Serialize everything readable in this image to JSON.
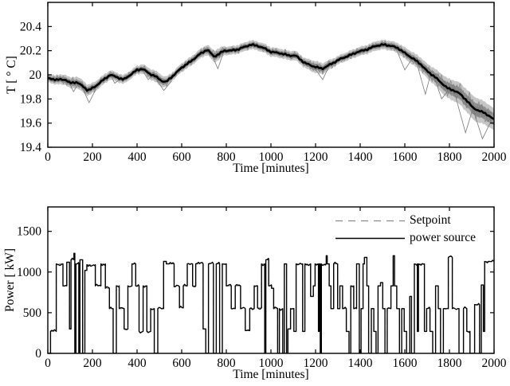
{
  "figure": {
    "background": "#ffffff",
    "axis_color": "#000000",
    "ensemble_color": "#7a7a7a",
    "band_outer_color": "#b3b3b3",
    "band_inner_color": "#8c8c8c"
  },
  "legend": {
    "items": [
      {
        "label": "Setpoint",
        "style": "dashed",
        "color": "#8a8a8a"
      },
      {
        "label": "power source",
        "style": "solid",
        "color": "#000000"
      }
    ]
  },
  "chart_data": [
    {
      "type": "line",
      "panel": "temperature",
      "xlabel": "Time [minutes]",
      "ylabel": "T [ ° C]",
      "xlim": [
        0,
        2000
      ],
      "ylim": [
        19.4,
        20.6
      ],
      "xticks": [
        0,
        200,
        400,
        600,
        800,
        1000,
        1200,
        1400,
        1600,
        1800,
        2000
      ],
      "yticks": [
        19.4,
        19.6,
        19.8,
        20,
        20.2,
        20.4
      ],
      "ytick_labels": [
        "19.4",
        "19.6",
        "19.8",
        "20",
        "20.2",
        "20.4"
      ],
      "grid": false,
      "series": [
        {
          "name": "ensemble-mean",
          "color": "#000000",
          "width": 2.6,
          "points": [
            [
              0,
              19.97
            ],
            [
              40,
              19.96
            ],
            [
              80,
              19.96
            ],
            [
              100,
              19.93
            ],
            [
              130,
              19.94
            ],
            [
              160,
              19.9
            ],
            [
              180,
              19.87
            ],
            [
              210,
              19.9
            ],
            [
              250,
              19.96
            ],
            [
              280,
              20.0
            ],
            [
              310,
              19.98
            ],
            [
              340,
              19.96
            ],
            [
              370,
              20.0
            ],
            [
              400,
              20.04
            ],
            [
              425,
              20.05
            ],
            [
              455,
              20.01
            ],
            [
              480,
              19.99
            ],
            [
              510,
              19.95
            ],
            [
              530,
              19.94
            ],
            [
              560,
              19.99
            ],
            [
              600,
              20.06
            ],
            [
              640,
              20.11
            ],
            [
              680,
              20.17
            ],
            [
              715,
              20.21
            ],
            [
              745,
              20.15
            ],
            [
              765,
              20.17
            ],
            [
              790,
              20.2
            ],
            [
              820,
              20.2
            ],
            [
              850,
              20.21
            ],
            [
              880,
              20.23
            ],
            [
              910,
              20.25
            ],
            [
              940,
              20.24
            ],
            [
              970,
              20.22
            ],
            [
              1000,
              20.19
            ],
            [
              1040,
              20.18
            ],
            [
              1080,
              20.16
            ],
            [
              1110,
              20.16
            ],
            [
              1150,
              20.1
            ],
            [
              1190,
              20.07
            ],
            [
              1230,
              20.05
            ],
            [
              1270,
              20.09
            ],
            [
              1310,
              20.13
            ],
            [
              1350,
              20.16
            ],
            [
              1390,
              20.19
            ],
            [
              1430,
              20.21
            ],
            [
              1470,
              20.24
            ],
            [
              1505,
              20.25
            ],
            [
              1540,
              20.24
            ],
            [
              1570,
              20.22
            ],
            [
              1600,
              20.18
            ],
            [
              1640,
              20.13
            ],
            [
              1670,
              20.09
            ],
            [
              1700,
              20.03
            ],
            [
              1730,
              19.99
            ],
            [
              1760,
              19.94
            ],
            [
              1790,
              19.89
            ],
            [
              1820,
              19.87
            ],
            [
              1850,
              19.84
            ],
            [
              1880,
              19.78
            ],
            [
              1905,
              19.73
            ],
            [
              1930,
              19.7
            ],
            [
              1955,
              19.69
            ],
            [
              1975,
              19.66
            ],
            [
              2000,
              19.63
            ]
          ]
        }
      ],
      "band_halfwidth": [
        [
          0,
          0.035
        ],
        [
          150,
          0.05
        ],
        [
          220,
          0.04
        ],
        [
          400,
          0.035
        ],
        [
          500,
          0.05
        ],
        [
          560,
          0.035
        ],
        [
          700,
          0.04
        ],
        [
          760,
          0.05
        ],
        [
          800,
          0.035
        ],
        [
          1150,
          0.04
        ],
        [
          1200,
          0.05
        ],
        [
          1300,
          0.035
        ],
        [
          1550,
          0.04
        ],
        [
          1620,
          0.05
        ],
        [
          1700,
          0.06
        ],
        [
          1780,
          0.08
        ],
        [
          1850,
          0.09
        ],
        [
          1920,
          0.1
        ],
        [
          2000,
          0.09
        ]
      ],
      "outlier_traces": [
        [
          [
            90,
            19.96
          ],
          [
            115,
            19.86
          ],
          [
            140,
            19.93
          ]
        ],
        [
          [
            150,
            19.91
          ],
          [
            185,
            19.77
          ],
          [
            215,
            19.88
          ]
        ],
        [
          [
            280,
            20.0
          ],
          [
            300,
            19.93
          ],
          [
            320,
            19.96
          ]
        ],
        [
          [
            420,
            20.05
          ],
          [
            450,
            19.96
          ],
          [
            470,
            20.0
          ]
        ],
        [
          [
            480,
            19.98
          ],
          [
            520,
            19.87
          ],
          [
            555,
            19.95
          ]
        ],
        [
          [
            730,
            20.19
          ],
          [
            762,
            20.05
          ],
          [
            788,
            20.19
          ]
        ],
        [
          [
            1190,
            20.07
          ],
          [
            1232,
            19.96
          ],
          [
            1262,
            20.08
          ]
        ],
        [
          [
            1560,
            20.22
          ],
          [
            1600,
            20.04
          ],
          [
            1628,
            20.12
          ]
        ],
        [
          [
            1650,
            20.12
          ],
          [
            1692,
            19.84
          ],
          [
            1715,
            20.0
          ]
        ],
        [
          [
            1730,
            19.99
          ],
          [
            1765,
            19.8
          ],
          [
            1798,
            19.88
          ]
        ],
        [
          [
            1820,
            19.87
          ],
          [
            1872,
            19.52
          ],
          [
            1905,
            19.72
          ]
        ],
        [
          [
            1905,
            19.72
          ],
          [
            1948,
            19.47
          ],
          [
            1988,
            19.62
          ]
        ]
      ]
    },
    {
      "type": "step",
      "panel": "power",
      "xlabel": "Time [minutes]",
      "ylabel": "Power [ kW]",
      "xlim": [
        0,
        2000
      ],
      "ylim": [
        0,
        1800
      ],
      "xticks": [
        0,
        200,
        400,
        600,
        800,
        1000,
        1200,
        1400,
        1600,
        1800,
        2000
      ],
      "yticks": [
        0,
        500,
        1000,
        1500
      ],
      "ytick_labels": [
        "0",
        "500",
        "1000",
        "1500"
      ],
      "grid": false,
      "steps": [
        [
          0,
          0
        ],
        [
          12,
          270
        ],
        [
          38,
          1100
        ],
        [
          68,
          830
        ],
        [
          85,
          1120
        ],
        [
          97,
          300
        ],
        [
          104,
          1150
        ],
        [
          117,
          1230
        ],
        [
          121,
          0
        ],
        [
          126,
          1100
        ],
        [
          139,
          0
        ],
        [
          144,
          1150
        ],
        [
          156,
          0
        ],
        [
          166,
          1020
        ],
        [
          175,
          1090
        ],
        [
          213,
          830
        ],
        [
          238,
          1100
        ],
        [
          258,
          800
        ],
        [
          276,
          550
        ],
        [
          293,
          0
        ],
        [
          307,
          830
        ],
        [
          320,
          550
        ],
        [
          342,
          300
        ],
        [
          359,
          830
        ],
        [
          377,
          1100
        ],
        [
          394,
          830
        ],
        [
          409,
          270
        ],
        [
          427,
          830
        ],
        [
          444,
          270
        ],
        [
          461,
          550
        ],
        [
          477,
          0
        ],
        [
          493,
          550
        ],
        [
          519,
          1130
        ],
        [
          531,
          1100
        ],
        [
          566,
          820
        ],
        [
          590,
          560
        ],
        [
          607,
          830
        ],
        [
          625,
          1100
        ],
        [
          649,
          830
        ],
        [
          663,
          1100
        ],
        [
          696,
          300
        ],
        [
          708,
          0
        ],
        [
          720,
          1100
        ],
        [
          742,
          0
        ],
        [
          755,
          1100
        ],
        [
          770,
          0
        ],
        [
          782,
          1100
        ],
        [
          800,
          830
        ],
        [
          822,
          550
        ],
        [
          840,
          830
        ],
        [
          864,
          550
        ],
        [
          885,
          280
        ],
        [
          905,
          550
        ],
        [
          925,
          830
        ],
        [
          940,
          560
        ],
        [
          958,
          1100
        ],
        [
          972,
          0
        ],
        [
          977,
          1150
        ],
        [
          990,
          830
        ],
        [
          1003,
          800
        ],
        [
          1012,
          550
        ],
        [
          1030,
          0
        ],
        [
          1038,
          550
        ],
        [
          1053,
          0
        ],
        [
          1060,
          1100
        ],
        [
          1070,
          0
        ],
        [
          1076,
          300
        ],
        [
          1088,
          550
        ],
        [
          1103,
          270
        ],
        [
          1113,
          1100
        ],
        [
          1142,
          270
        ],
        [
          1152,
          1100
        ],
        [
          1178,
          700
        ],
        [
          1190,
          830
        ],
        [
          1198,
          1100
        ],
        [
          1213,
          270
        ],
        [
          1217,
          1100
        ],
        [
          1221,
          0
        ],
        [
          1226,
          1100
        ],
        [
          1248,
          1200
        ],
        [
          1252,
          1100
        ],
        [
          1261,
          830
        ],
        [
          1269,
          550
        ],
        [
          1281,
          1100
        ],
        [
          1299,
          550
        ],
        [
          1309,
          830
        ],
        [
          1321,
          550
        ],
        [
          1338,
          270
        ],
        [
          1350,
          0
        ],
        [
          1358,
          830
        ],
        [
          1371,
          550
        ],
        [
          1384,
          1100
        ],
        [
          1396,
          0
        ],
        [
          1404,
          550
        ],
        [
          1413,
          1100
        ],
        [
          1419,
          1180
        ],
        [
          1430,
          830
        ],
        [
          1438,
          0
        ],
        [
          1450,
          550
        ],
        [
          1461,
          270
        ],
        [
          1471,
          0
        ],
        [
          1480,
          830
        ],
        [
          1491,
          870
        ],
        [
          1501,
          550
        ],
        [
          1511,
          0
        ],
        [
          1521,
          550
        ],
        [
          1538,
          830
        ],
        [
          1548,
          1200
        ],
        [
          1554,
          830
        ],
        [
          1564,
          550
        ],
        [
          1576,
          0
        ],
        [
          1586,
          550
        ],
        [
          1597,
          270
        ],
        [
          1608,
          0
        ],
        [
          1622,
          700
        ],
        [
          1630,
          0
        ],
        [
          1643,
          1100
        ],
        [
          1656,
          270
        ],
        [
          1661,
          1100
        ],
        [
          1688,
          270
        ],
        [
          1698,
          550
        ],
        [
          1713,
          270
        ],
        [
          1725,
          0
        ],
        [
          1738,
          830
        ],
        [
          1750,
          550
        ],
        [
          1760,
          0
        ],
        [
          1773,
          550
        ],
        [
          1795,
          1180
        ],
        [
          1813,
          550
        ],
        [
          1843,
          0
        ],
        [
          1863,
          550
        ],
        [
          1878,
          270
        ],
        [
          1892,
          0
        ],
        [
          1913,
          600
        ],
        [
          1935,
          0
        ],
        [
          1943,
          840
        ],
        [
          1952,
          270
        ],
        [
          1958,
          1130
        ],
        [
          2000,
          1130
        ]
      ],
      "series": [
        {
          "name": "Setpoint",
          "style": "dashed",
          "color": "#8a8a8a",
          "width": 1
        },
        {
          "name": "power source",
          "style": "solid",
          "color": "#000000",
          "width": 1.4
        }
      ]
    }
  ]
}
